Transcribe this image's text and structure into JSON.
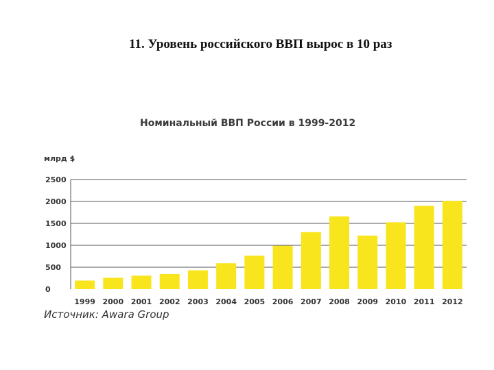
{
  "slide": {
    "title": "11. Уровень российского ВВП вырос в 10 раз"
  },
  "source": "Источник: Awara Group",
  "colors": {
    "bar": "#f9e51e",
    "grid": "#555555"
  },
  "chart_data": {
    "type": "bar",
    "title": "Номинальный ВВП России в 1999-2012",
    "ylabel": "млрд $",
    "xlabel": "",
    "categories": [
      "1999",
      "2000",
      "2001",
      "2002",
      "2003",
      "2004",
      "2005",
      "2006",
      "2007",
      "2008",
      "2009",
      "2010",
      "2011",
      "2012"
    ],
    "values": [
      196,
      260,
      307,
      345,
      430,
      591,
      764,
      990,
      1300,
      1660,
      1222,
      1525,
      1900,
      2015
    ],
    "ylim": [
      0,
      2500
    ],
    "yticks": [
      "0",
      "500",
      "1000",
      "1500",
      "2000",
      "2500"
    ],
    "grid": true,
    "legend": "none"
  }
}
